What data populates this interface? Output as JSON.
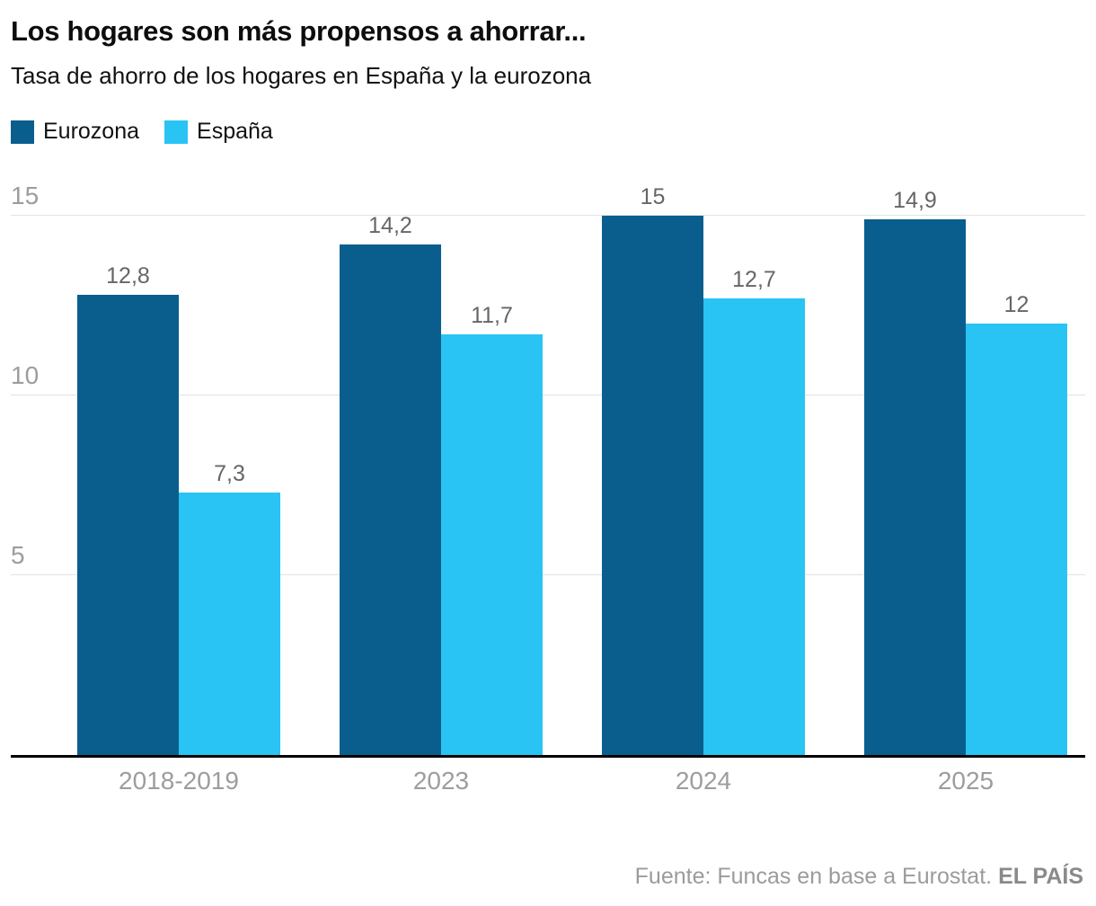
{
  "header": {
    "title": "Los hogares son más propensos a ahorrar...",
    "subtitle": "Tasa de ahorro de los hogares en España y la eurozona"
  },
  "legend": [
    {
      "label": "Eurozona",
      "color": "#095e8e"
    },
    {
      "label": "España",
      "color": "#29c4f3"
    }
  ],
  "chart_data": {
    "type": "bar",
    "title": "Los hogares son más propensos a ahorrar...",
    "subtitle": "Tasa de ahorro de los hogares en España y la eurozona",
    "categories": [
      "2018-2019",
      "2023",
      "2024",
      "2025"
    ],
    "series": [
      {
        "name": "Eurozona",
        "color": "#095e8e",
        "values": [
          12.8,
          14.2,
          15,
          14.9
        ],
        "labels": [
          "12,8",
          "14,2",
          "15",
          "14,9"
        ]
      },
      {
        "name": "España",
        "color": "#29c4f3",
        "values": [
          7.3,
          11.7,
          12.7,
          12
        ],
        "labels": [
          "7,3",
          "11,7",
          "12,7",
          "12"
        ]
      }
    ],
    "yticks": [
      5,
      10,
      15
    ],
    "ylim": [
      0,
      15.5
    ],
    "grid": true,
    "legend_position": "top"
  },
  "footer": {
    "source": "Fuente: Funcas en base a Eurostat.",
    "brand": "EL PAÍS"
  }
}
